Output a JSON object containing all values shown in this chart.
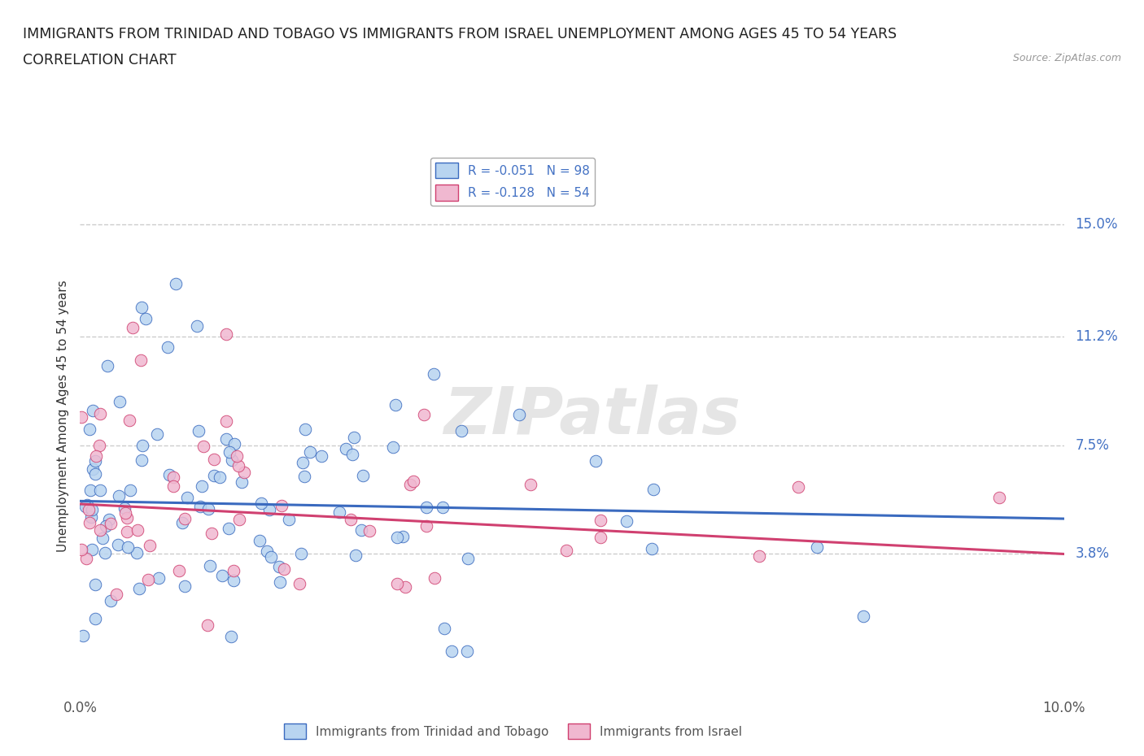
{
  "title_line1": "IMMIGRANTS FROM TRINIDAD AND TOBAGO VS IMMIGRANTS FROM ISRAEL UNEMPLOYMENT AMONG AGES 45 TO 54 YEARS",
  "title_line2": "CORRELATION CHART",
  "source": "Source: ZipAtlas.com",
  "ylabel": "Unemployment Among Ages 45 to 54 years",
  "xlim": [
    0.0,
    0.1
  ],
  "ylim": [
    -0.005,
    0.175
  ],
  "yticks": [
    0.038,
    0.075,
    0.112,
    0.15
  ],
  "ytick_labels": [
    "3.8%",
    "7.5%",
    "11.2%",
    "15.0%"
  ],
  "legend_label1": "Immigrants from Trinidad and Tobago",
  "legend_label2": "Immigrants from Israel",
  "R1": -0.051,
  "N1": 98,
  "R2": -0.128,
  "N2": 54,
  "color1": "#b8d4f0",
  "color2": "#f0b8d0",
  "trend_color1": "#3a6abf",
  "trend_color2": "#d04070",
  "tick_color": "#4472c4",
  "watermark": "ZIPatlas",
  "grid_color": "#cccccc",
  "background_color": "#ffffff",
  "title_fontsize": 12.5,
  "axis_label_fontsize": 11,
  "tick_fontsize": 12,
  "legend_fontsize": 11,
  "seed1": 17,
  "seed2": 99
}
